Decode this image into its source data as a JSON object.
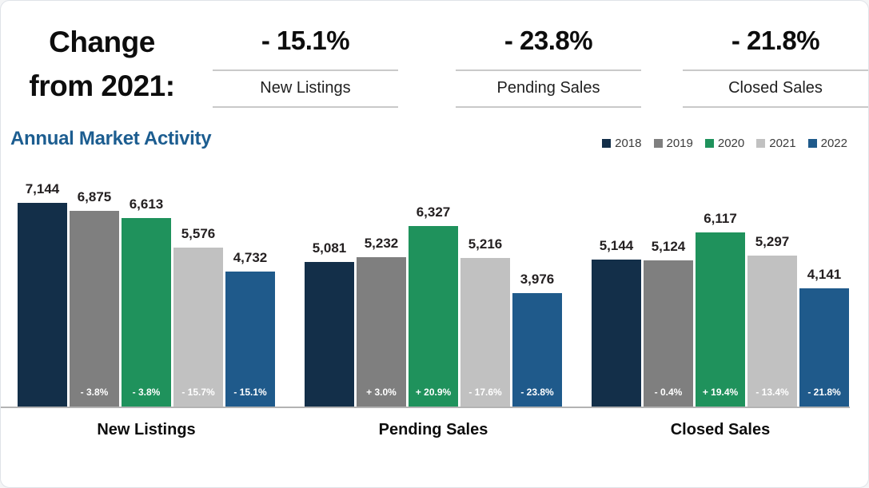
{
  "header": {
    "change_line1": "Change",
    "change_line2": "from 2021:",
    "stats": [
      {
        "value": "- 15.1%",
        "label": "New Listings"
      },
      {
        "value": "- 23.8%",
        "label": "Pending Sales"
      },
      {
        "value": "- 21.8%",
        "label": "Closed Sales"
      }
    ]
  },
  "chart_data": {
    "type": "bar",
    "title": "Annual Market Activity",
    "title_color": "#1c5d90",
    "categories": [
      "New Listings",
      "Pending Sales",
      "Closed Sales"
    ],
    "series": [
      {
        "name": "2018",
        "color": "#132f49",
        "values": [
          7144,
          5081,
          5144
        ],
        "pct_labels": [
          null,
          null,
          null
        ]
      },
      {
        "name": "2019",
        "color": "#7f7f7f",
        "values": [
          6875,
          5232,
          5124
        ],
        "pct_labels": [
          "- 3.8%",
          "+ 3.0%",
          "- 0.4%"
        ]
      },
      {
        "name": "2020",
        "color": "#1f925c",
        "values": [
          6613,
          6327,
          6117
        ],
        "pct_labels": [
          "- 3.8%",
          "+ 20.9%",
          "+ 19.4%"
        ]
      },
      {
        "name": "2021",
        "color": "#c1c1c1",
        "values": [
          5576,
          5216,
          5297
        ],
        "pct_labels": [
          "- 15.7%",
          "- 17.6%",
          "- 13.4%"
        ]
      },
      {
        "name": "2022",
        "color": "#1f5a8b",
        "values": [
          4732,
          3976,
          4141
        ],
        "pct_labels": [
          "- 15.1%",
          "- 23.8%",
          "- 21.8%"
        ]
      }
    ],
    "ylim": [
      0,
      7144
    ],
    "grid": false,
    "legend_position": "top-right",
    "value_label_format": "thousands-comma",
    "axis_line_color": "#b3b3b3"
  }
}
